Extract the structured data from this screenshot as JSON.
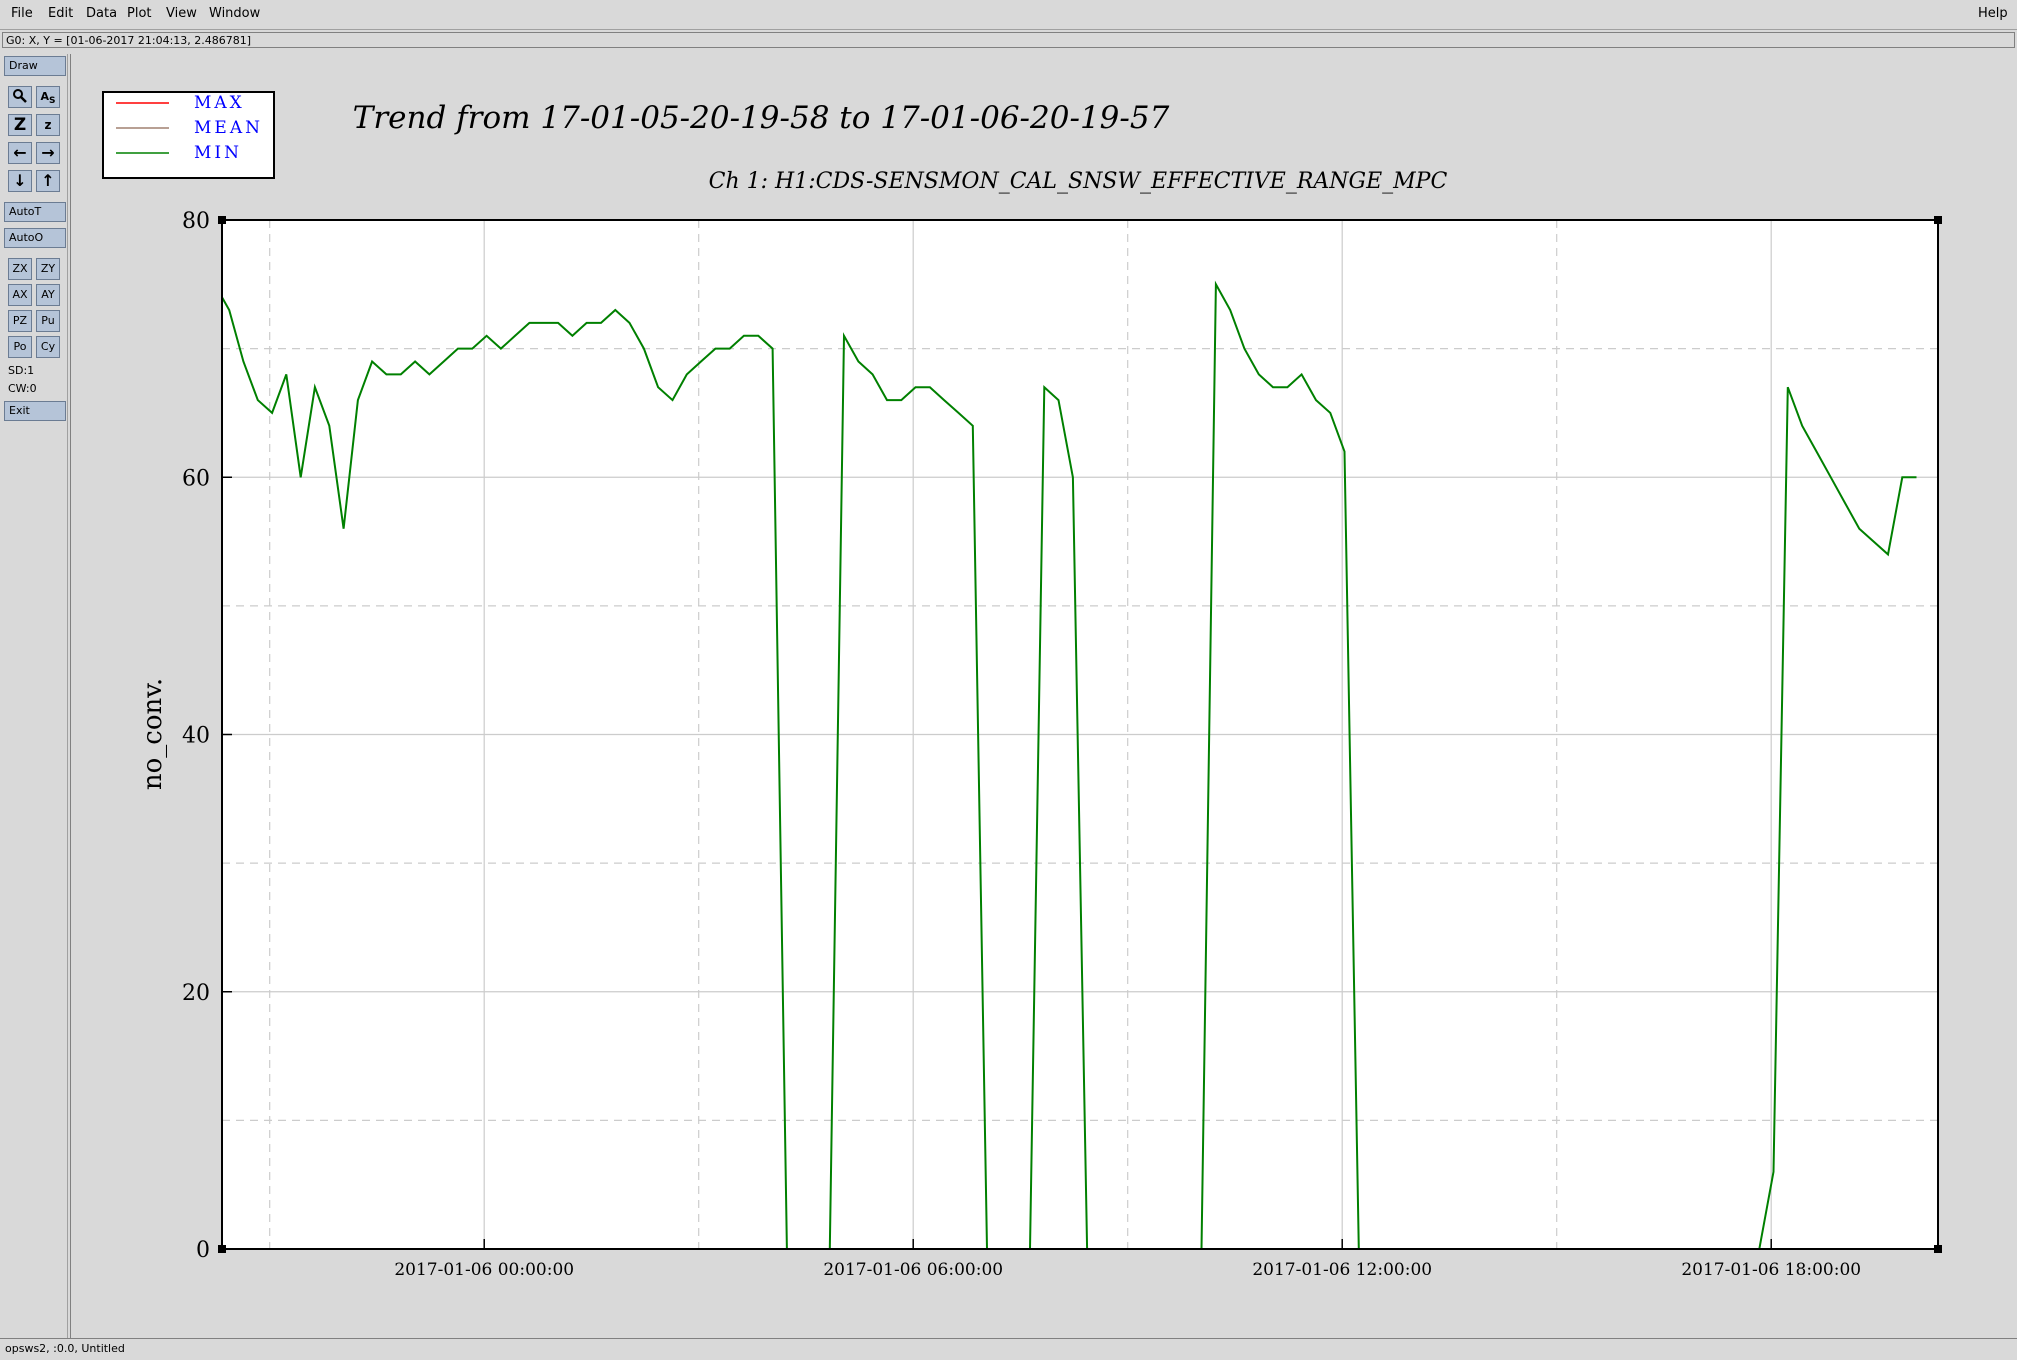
{
  "menubar": {
    "items": [
      "File",
      "Edit",
      "Data",
      "Plot",
      "View",
      "Window"
    ],
    "help": "Help"
  },
  "coord_readout": "G0: X, Y = [01-06-2017 21:04:13, 2.486781]",
  "toolbar": {
    "draw": "Draw",
    "autoT": "AutoT",
    "autoO": "AutoO",
    "zx": "ZX",
    "zy": "ZY",
    "ax": "AX",
    "ay": "AY",
    "pz": "PZ",
    "pu": "Pu",
    "po": "Po",
    "cy": "Cy",
    "sd": "SD:1",
    "cw": "CW:0",
    "exit": "Exit",
    "icon_names": [
      "magnifier-icon",
      "text-size-icon",
      "zoom-z-icon",
      "zoom-small-z-icon",
      "pan-left-icon",
      "pan-right-icon",
      "pan-down-icon",
      "pan-up-icon"
    ]
  },
  "status": "opsws2, :0.0, Untitled",
  "chart_data": {
    "type": "line",
    "title": "Trend from 17-01-05-20-19-58 to 17-01-06-20-19-57",
    "subtitle": "Ch 1: H1:CDS-SENSMON_CAL_SNSW_EFFECTIVE_RANGE_MPC",
    "xlabel": "",
    "ylabel": "no_conv.",
    "ylim": [
      0,
      80
    ],
    "xlim": [
      "2017-01-05 20:19:58",
      "2017-01-06 20:19:57"
    ],
    "y_ticks": [
      0,
      20,
      40,
      60,
      80
    ],
    "x_ticks": [
      "2017-01-06 00:00:00",
      "2017-01-06 06:00:00",
      "2017-01-06 12:00:00",
      "2017-01-06 18:00:00"
    ],
    "grid": true,
    "legend": {
      "position": "top-left",
      "entries": [
        "MAX",
        "MEAN",
        "MIN"
      ]
    },
    "colors": {
      "MAX": "#ff0000",
      "MEAN": "#a08070",
      "MIN": "#008000"
    },
    "series": [
      {
        "name": "MIN",
        "x_hours_since_2017-01-05_20:19:58": [
          0.0,
          0.1,
          0.3,
          0.5,
          0.7,
          0.9,
          1.1,
          1.3,
          1.5,
          1.7,
          1.9,
          2.1,
          2.3,
          2.5,
          2.7,
          2.9,
          3.1,
          3.3,
          3.5,
          3.7,
          3.9,
          4.1,
          4.3,
          4.5,
          4.7,
          4.9,
          5.1,
          5.3,
          5.5,
          5.7,
          5.9,
          6.1,
          6.3,
          6.5,
          6.7,
          6.9,
          7.1,
          7.3,
          7.5,
          7.7,
          7.9,
          8.1,
          8.3,
          8.5,
          8.7,
          8.9,
          9.1,
          9.3,
          9.5,
          9.7,
          9.9,
          10.1,
          10.3,
          10.5,
          10.7,
          10.9,
          11.1,
          11.3,
          11.5,
          11.7,
          11.9,
          12.1,
          12.3,
          12.5,
          12.7,
          12.9,
          13.1,
          13.3,
          13.5,
          13.7,
          13.9,
          14.1,
          14.3,
          14.5,
          14.7,
          14.9,
          15.1,
          15.3,
          15.5,
          15.7,
          15.9,
          16.1,
          16.3,
          16.5,
          16.7,
          16.9,
          17.1,
          17.3,
          17.5,
          17.7,
          17.9,
          18.1,
          18.3,
          18.5,
          18.7,
          18.9,
          19.1,
          19.3,
          19.5,
          19.7,
          19.9,
          20.1,
          20.3,
          20.5,
          20.7,
          20.9,
          21.1,
          21.3,
          21.5,
          21.7,
          21.9,
          22.1,
          22.3,
          22.5,
          22.7,
          22.9,
          23.1,
          23.3,
          23.5,
          23.7,
          23.9
        ],
        "values": [
          74,
          73,
          69,
          66,
          65,
          68,
          60,
          67,
          64,
          56,
          66,
          69,
          68,
          68,
          69,
          68,
          69,
          70,
          70,
          71,
          70,
          71,
          72,
          72,
          72,
          71,
          72,
          72,
          73,
          72,
          70,
          67,
          66,
          68,
          69,
          70,
          70,
          71,
          71,
          70,
          0,
          0,
          0,
          0,
          71,
          69,
          68,
          66,
          66,
          67,
          67,
          66,
          65,
          64,
          0,
          0,
          0,
          0,
          67,
          66,
          60,
          0,
          0,
          0,
          0,
          0,
          0,
          0,
          0,
          0,
          75,
          73,
          70,
          68,
          67,
          67,
          68,
          66,
          65,
          62,
          0,
          0,
          0,
          0,
          0,
          0,
          0,
          0,
          0,
          0,
          0,
          0,
          0,
          0,
          0,
          0,
          0,
          0,
          0,
          0,
          0,
          0,
          0,
          0,
          0,
          0,
          0,
          0,
          0,
          6,
          67,
          64,
          62,
          60,
          58,
          56,
          55,
          54,
          60,
          60
        ]
      }
    ]
  }
}
